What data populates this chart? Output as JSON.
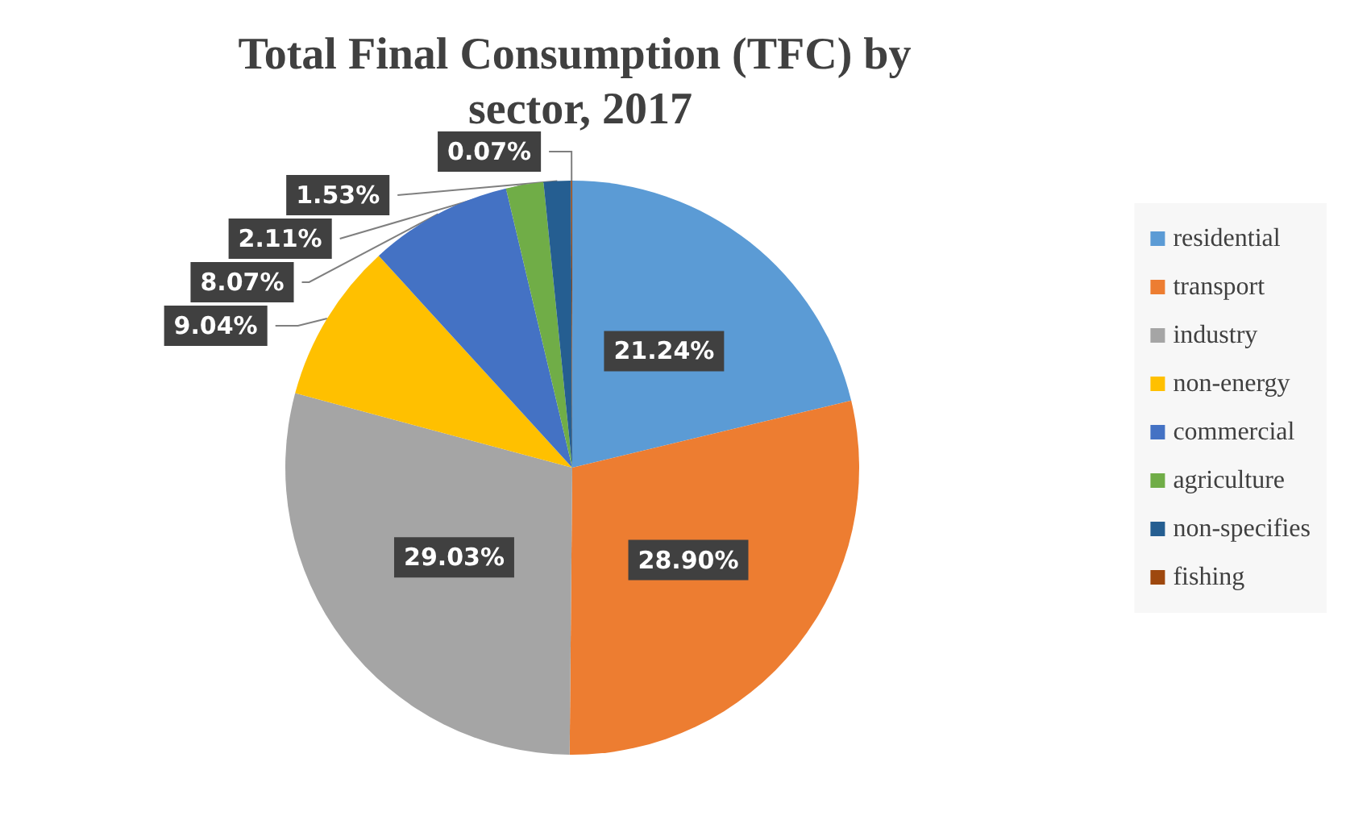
{
  "chart_data": {
    "type": "pie",
    "title": "Total Final Consumption (TFC) by sector, 2017",
    "categories": [
      "residential",
      "transport",
      "industry",
      "non-energy",
      "commercial",
      "agriculture",
      "non-specifies",
      "fishing"
    ],
    "values": [
      21.24,
      28.9,
      29.03,
      9.04,
      8.07,
      2.11,
      1.53,
      0.07
    ],
    "value_labels": [
      "21.24%",
      "28.90%",
      "29.03%",
      "9.04%",
      "8.07%",
      "2.11%",
      "1.53%",
      "0.07%"
    ],
    "colors": [
      "#5b9bd5",
      "#ed7d31",
      "#a5a5a5",
      "#ffc000",
      "#4472c4",
      "#70ad47",
      "#255e91",
      "#9e480e"
    ],
    "legend": "right"
  }
}
